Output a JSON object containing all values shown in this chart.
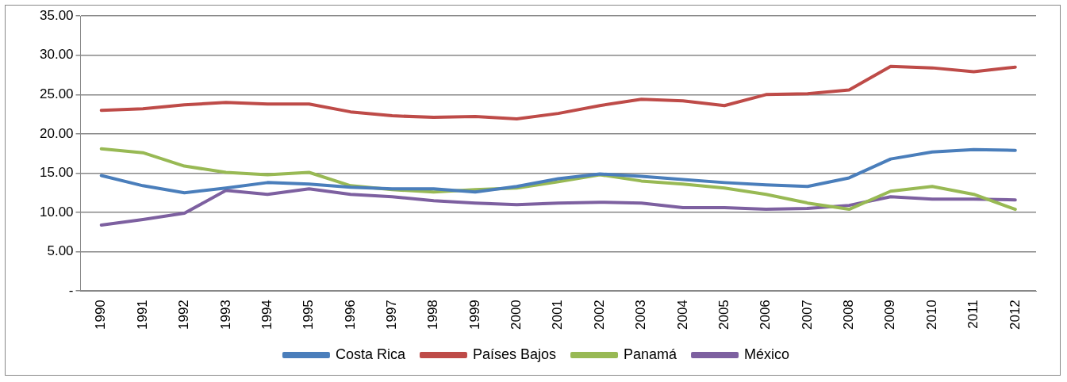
{
  "chart_data": {
    "type": "line",
    "categories": [
      "1990",
      "1991",
      "1992",
      "1993",
      "1994",
      "1995",
      "1996",
      "1997",
      "1998",
      "1999",
      "2000",
      "2001",
      "2002",
      "2003",
      "2004",
      "2005",
      "2006",
      "2007",
      "2008",
      "2009",
      "2010",
      "2011",
      "2012"
    ],
    "series": [
      {
        "name": "Costa Rica",
        "color": "#4a7ebb",
        "values": [
          14.7,
          13.4,
          12.5,
          13.1,
          13.8,
          13.6,
          13.2,
          13.0,
          13.0,
          12.6,
          13.3,
          14.3,
          14.9,
          14.6,
          14.2,
          13.8,
          13.5,
          13.3,
          14.4,
          16.8,
          17.7,
          18.0,
          17.9
        ]
      },
      {
        "name": "Países Bajos",
        "color": "#be4b48",
        "values": [
          23.0,
          23.2,
          23.7,
          24.0,
          23.8,
          23.8,
          22.8,
          22.3,
          22.1,
          22.2,
          21.9,
          22.6,
          23.6,
          24.4,
          24.2,
          23.6,
          25.0,
          25.1,
          25.6,
          28.6,
          28.4,
          27.9,
          28.5
        ]
      },
      {
        "name": "Panamá",
        "color": "#98b954",
        "values": [
          18.1,
          17.6,
          15.9,
          15.1,
          14.8,
          15.1,
          13.4,
          12.9,
          12.6,
          12.9,
          13.1,
          13.9,
          14.8,
          14.0,
          13.6,
          13.1,
          12.3,
          11.2,
          10.4,
          12.7,
          13.3,
          12.3,
          10.4
        ]
      },
      {
        "name": "México",
        "color": "#7d60a0",
        "values": [
          8.4,
          9.1,
          9.9,
          12.8,
          12.3,
          13.0,
          12.3,
          12.0,
          11.5,
          11.2,
          11.0,
          11.2,
          11.3,
          11.2,
          10.6,
          10.6,
          10.4,
          10.5,
          10.9,
          12.0,
          11.7,
          11.7,
          11.6
        ]
      }
    ],
    "ylim": [
      0,
      35
    ],
    "yticks": [
      {
        "value": 0,
        "label": "-"
      },
      {
        "value": 5,
        "label": "5.00"
      },
      {
        "value": 10,
        "label": "10.00"
      },
      {
        "value": 15,
        "label": "15.00"
      },
      {
        "value": 20,
        "label": "20.00"
      },
      {
        "value": 25,
        "label": "25.00"
      },
      {
        "value": 30,
        "label": "30.00"
      },
      {
        "value": 35,
        "label": "35.00"
      }
    ],
    "grid": "y",
    "legend": "bottom",
    "marker": "none",
    "line_style": "solid"
  }
}
